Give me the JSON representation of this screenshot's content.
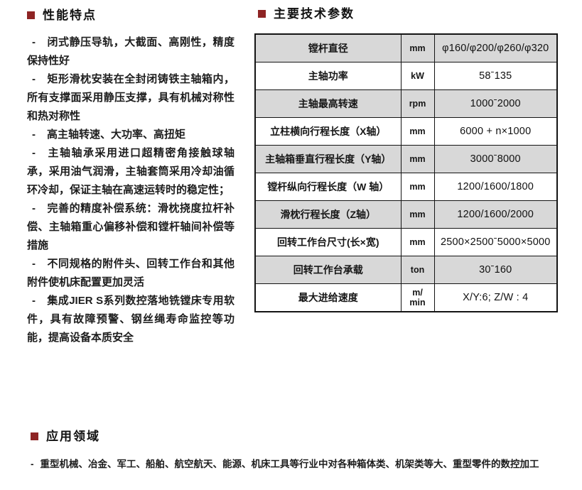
{
  "colors": {
    "accent": "#8e2424",
    "row_gray": "#d8d8d8",
    "border": "#141414",
    "text": "#1d1d1d"
  },
  "features": {
    "title": "性能特点",
    "bullet": "-",
    "items": [
      "闭式静压导轨，大截面、高刚性，精度保持性好",
      "矩形滑枕安装在全封闭铸铁主轴箱内，所有支撑面采用静压支撑，具有机械对称性和热对称性",
      "高主轴转速、大功率、高扭矩",
      "主轴轴承采用进口超精密角接触球轴承，采用油气润滑，主轴套筒采用冷却油循环冷却，保证主轴在高速运转时的稳定性；",
      "完善的精度补偿系统：滑枕挠度拉杆补偿、主轴箱重心偏移补偿和镗杆轴间补偿等措施",
      "不同规格的附件头、回转工作台和其他附件使机床配置更加灵活",
      "集成JIER S系列数控落地铣镗床专用软件，具有故障预警、钢丝绳寿命监控等功能，提高设备本质安全"
    ]
  },
  "specs": {
    "title": "主要技术参数",
    "rows": [
      {
        "name": "镗杆直径",
        "unit": "mm",
        "value": "φ160/φ200/φ260/φ320"
      },
      {
        "name": "主轴功率",
        "unit": "kW",
        "value": "58ˉ135"
      },
      {
        "name": "主轴最高转速",
        "unit": "rpm",
        "value": "1000ˉ2000"
      },
      {
        "name": "立柱横向行程长度（X轴）",
        "unit": "mm",
        "value": "6000 + n×1000"
      },
      {
        "name": "主轴箱垂直行程长度（Y轴）",
        "unit": "mm",
        "value": "3000ˉ8000"
      },
      {
        "name": "镗杆纵向行程长度（W 轴）",
        "unit": "mm",
        "value": "1200/1600/1800"
      },
      {
        "name": "滑枕行程长度（Z轴）",
        "unit": "mm",
        "value": "1200/1600/2000"
      },
      {
        "name": "回转工作台尺寸(长×宽)",
        "unit": "mm",
        "value": "2500×2500ˉ5000×5000"
      },
      {
        "name": "回转工作台承载",
        "unit": "ton",
        "value": "30ˉ160"
      },
      {
        "name": "最大进给速度",
        "unit": "m/\nmin",
        "value": "X/Y:6; Z/W : 4"
      }
    ]
  },
  "applications": {
    "title": "应用领域",
    "bullet": "-",
    "items": [
      "重型机械、冶金、军工、船舶、航空航天、能源、机床工具等行业中对各种箱体类、机架类等大、重型零件的数控加工"
    ]
  }
}
